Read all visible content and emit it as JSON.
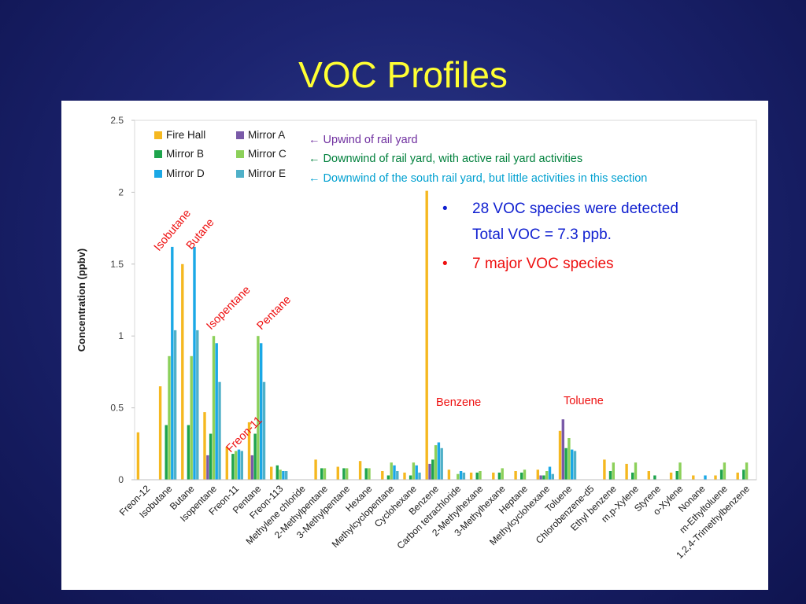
{
  "slide": {
    "title": "VOC Profiles"
  },
  "notes": [
    {
      "text": "← Upwind of rail yard",
      "color": "#7030a0"
    },
    {
      "text": "← Downwind of rail yard, with active rail yard activities",
      "color": "#00803c"
    },
    {
      "text": "← Downwind of the south rail yard, but little activities in this section",
      "color": "#00a0d0"
    }
  ],
  "bullets": [
    {
      "marker": "•",
      "line1": "28 VOC species were detected",
      "line2": "Total VOC = 7.3 ppb.",
      "color": "#1020d0"
    },
    {
      "marker": "•",
      "line1": "7 major VOC species",
      "color": "#ee1010"
    }
  ],
  "annotations": [
    "Isobutane",
    "Butane",
    "Isopentane",
    "Pentane",
    "Freon-11",
    "Benzene",
    "Toluene"
  ],
  "annotation_color": "#ee1010",
  "chart_data": {
    "type": "bar",
    "ylabel": "Concentration (ppbv)",
    "ylim": [
      0,
      2.5
    ],
    "yticks": [
      "0",
      "0.5",
      "1",
      "1.5",
      "2",
      "2.5"
    ],
    "grid": false,
    "legend_position": "top-left",
    "categories": [
      "Freon-12",
      "Isobutane",
      "Butane",
      "Isopentane",
      "Freon-11",
      "Pentane",
      "Freon-113",
      "Methylene chloride",
      "2-Methylpentane",
      "3-Methylpentane",
      "Hexane",
      "Methylcyclopentane",
      "Cyclohexane",
      "Benzene",
      "Carbon tetrachloride",
      "2-Methylhexane",
      "3-Methylhexane",
      "Heptane",
      "Methylcyclohexane",
      "Toluene",
      "Chlorobenzene-d5",
      "Ethyl benzene",
      "m,p-Xylene",
      "Styrene",
      "o-Xylene",
      "Nonane",
      "m-Ethyltoluene",
      "1,2,4-Trimethylbenzene"
    ],
    "series": [
      {
        "name": "Fire Hall",
        "color": "#f5b820",
        "values": [
          0.33,
          0.65,
          1.5,
          0.47,
          0.23,
          0.4,
          0.09,
          0,
          0.14,
          0.09,
          0.13,
          0.06,
          0.05,
          2.01,
          0.07,
          0.05,
          0.05,
          0.06,
          0.07,
          0.34,
          0,
          0.14,
          0.11,
          0.06,
          0.05,
          0.03,
          0.03,
          0.05
        ]
      },
      {
        "name": "Mirror A",
        "color": "#7a5aa8",
        "values": [
          0,
          0,
          0,
          0.17,
          0,
          0.17,
          0,
          0,
          0,
          0,
          0,
          0,
          0,
          0.11,
          0,
          0,
          0,
          0,
          0.03,
          0.42,
          0,
          0,
          0,
          0,
          0,
          0,
          0,
          0
        ]
      },
      {
        "name": "Mirror B",
        "color": "#1ea44c",
        "values": [
          0,
          0.38,
          0.38,
          0.32,
          0.18,
          0.32,
          0.1,
          0,
          0.08,
          0.08,
          0.08,
          0.03,
          0.03,
          0.14,
          0,
          0.05,
          0.05,
          0.05,
          0.03,
          0.22,
          0,
          0.06,
          0.05,
          0.03,
          0.06,
          0,
          0.07,
          0.07
        ]
      },
      {
        "name": "Mirror C",
        "color": "#8cd05a",
        "values": [
          0,
          0.86,
          0.86,
          1.0,
          0.2,
          1.0,
          0.07,
          0,
          0.08,
          0.08,
          0.08,
          0.12,
          0.12,
          0.24,
          0.04,
          0.06,
          0.08,
          0.07,
          0.06,
          0.29,
          0,
          0.12,
          0.12,
          0,
          0.12,
          0,
          0.12,
          0.12
        ]
      },
      {
        "name": "Mirror D",
        "color": "#1aa8e6",
        "values": [
          0,
          1.62,
          1.62,
          0.95,
          0.21,
          0.95,
          0.06,
          0,
          0,
          0,
          0,
          0.1,
          0.1,
          0.26,
          0.06,
          0,
          0,
          0,
          0.09,
          0.21,
          0,
          0,
          0,
          0,
          0,
          0.03,
          0,
          0
        ]
      },
      {
        "name": "Mirror E",
        "color": "#4fb0c8",
        "values": [
          0,
          1.04,
          1.04,
          0.68,
          0.2,
          0.68,
          0.06,
          0,
          0,
          0,
          0,
          0.06,
          0.05,
          0.22,
          0.05,
          0,
          0,
          0,
          0.04,
          0.2,
          0,
          0,
          0,
          0,
          0,
          0,
          0,
          0
        ]
      }
    ]
  }
}
